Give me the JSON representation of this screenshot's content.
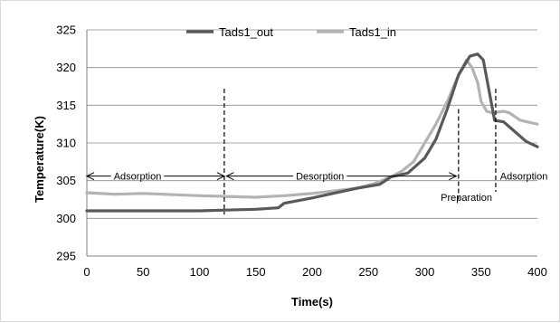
{
  "chart_data": {
    "type": "line",
    "xlabel": "Time(s)",
    "ylabel": "Temperature(K)",
    "xlim": [
      0,
      400
    ],
    "ylim": [
      295,
      325
    ],
    "xticks": [
      0,
      50,
      100,
      150,
      200,
      250,
      300,
      350,
      400
    ],
    "yticks": [
      295,
      300,
      305,
      310,
      315,
      320,
      325
    ],
    "grid": "horizontal",
    "legend_position": "top",
    "colors": {
      "Tads1_out": "#595959",
      "Tads1_in": "#b3b3b3"
    },
    "series": [
      {
        "name": "Tads1_out",
        "x": [
          0,
          25,
          50,
          100,
          150,
          170,
          175,
          200,
          240,
          260,
          270,
          285,
          300,
          310,
          320,
          330,
          340,
          347,
          352,
          357,
          362,
          370,
          380,
          390,
          400
        ],
        "y": [
          301.0,
          301.0,
          301.0,
          301.0,
          301.2,
          301.4,
          302.0,
          302.7,
          304.0,
          304.5,
          305.5,
          306.0,
          308.0,
          310.5,
          314.5,
          319.0,
          321.5,
          321.8,
          321.0,
          317.0,
          313.0,
          312.8,
          311.5,
          310.2,
          309.5
        ]
      },
      {
        "name": "Tads1_in",
        "x": [
          0,
          25,
          50,
          100,
          150,
          175,
          200,
          240,
          255,
          270,
          280,
          290,
          300,
          310,
          320,
          330,
          337,
          342,
          347,
          350,
          355,
          360,
          370,
          375,
          385,
          400
        ],
        "y": [
          303.4,
          303.2,
          303.3,
          303.0,
          302.8,
          303.0,
          303.3,
          304.0,
          304.6,
          305.5,
          306.3,
          307.5,
          310.0,
          312.5,
          315.5,
          319.0,
          321.0,
          320.0,
          318.0,
          315.5,
          314.2,
          314.0,
          314.2,
          314.0,
          313.0,
          312.5
        ]
      }
    ],
    "markers": [
      {
        "x": 122,
        "ymin": 300.5,
        "ymax": 317.2
      },
      {
        "x": 330,
        "ymin": 302.5,
        "ymax": 314.5
      },
      {
        "x": 363,
        "ymin": 303.5,
        "ymax": 317.2
      }
    ],
    "annotations": [
      {
        "text": "Adsorption",
        "arrow_from": 0,
        "arrow_to": 122,
        "y": 305.6,
        "text_x": 45
      },
      {
        "text": "Desorption",
        "arrow_from": 124,
        "arrow_to": 328,
        "y": 305.6,
        "text_x": 207
      },
      {
        "text": "Preparation",
        "text_x": 337,
        "text_y": 302.8
      },
      {
        "text": "Adsorption",
        "text_x": 388,
        "text_y": 305.6
      }
    ]
  }
}
